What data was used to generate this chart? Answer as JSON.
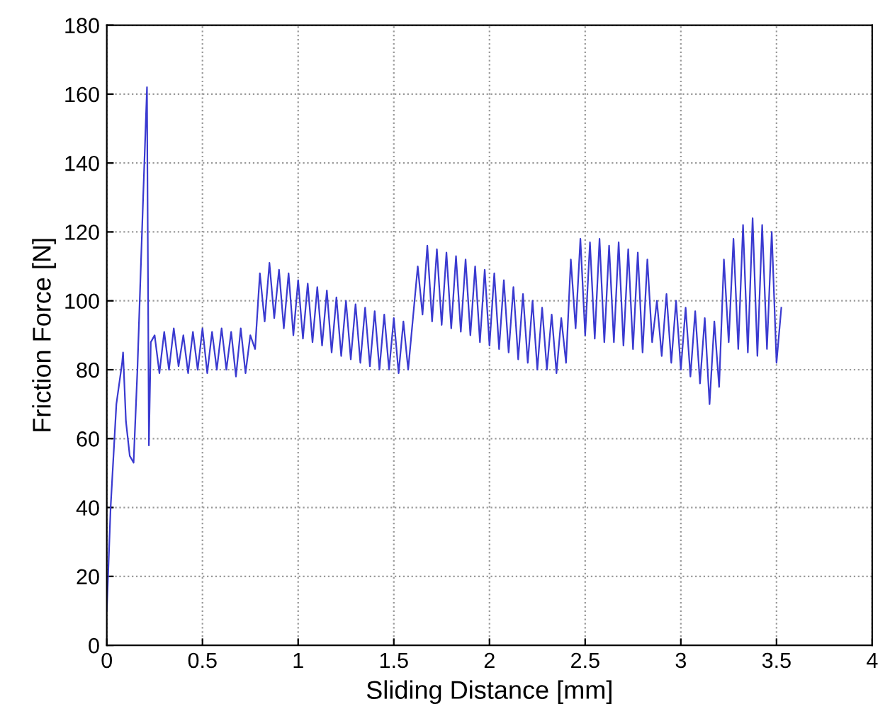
{
  "chart_data": {
    "type": "line",
    "xlabel": "Sliding Distance [mm]",
    "ylabel": "Friction Force [N]",
    "xlim": [
      0,
      4
    ],
    "xticks": [
      0,
      0.5,
      1,
      1.5,
      2,
      2.5,
      3,
      3.5,
      4
    ],
    "ylim": [
      0,
      180
    ],
    "yticks": [
      0,
      20,
      40,
      60,
      80,
      100,
      120,
      140,
      160,
      180
    ],
    "grid": true,
    "series": [
      {
        "color": "#3a3ad0",
        "x": [
          0,
          0.02,
          0.05,
          0.08,
          0.085,
          0.1,
          0.12,
          0.14,
          0.16,
          0.19,
          0.21,
          0.22,
          0.23,
          0.25,
          0.275,
          0.3,
          0.325,
          0.35,
          0.375,
          0.4,
          0.425,
          0.45,
          0.475,
          0.5,
          0.525,
          0.55,
          0.575,
          0.6,
          0.625,
          0.65,
          0.675,
          0.7,
          0.725,
          0.75,
          0.775,
          0.8,
          0.825,
          0.85,
          0.875,
          0.9,
          0.925,
          0.95,
          0.975,
          1,
          1.025,
          1.05,
          1.075,
          1.1,
          1.125,
          1.15,
          1.175,
          1.2,
          1.225,
          1.25,
          1.275,
          1.3,
          1.325,
          1.35,
          1.375,
          1.4,
          1.425,
          1.45,
          1.475,
          1.5,
          1.525,
          1.55,
          1.575,
          1.6,
          1.625,
          1.65,
          1.675,
          1.7,
          1.725,
          1.75,
          1.775,
          1.8,
          1.825,
          1.85,
          1.875,
          1.9,
          1.925,
          1.95,
          1.975,
          2,
          2.025,
          2.05,
          2.075,
          2.1,
          2.125,
          2.15,
          2.175,
          2.2,
          2.225,
          2.25,
          2.275,
          2.3,
          2.325,
          2.35,
          2.375,
          2.4,
          2.425,
          2.45,
          2.475,
          2.5,
          2.525,
          2.55,
          2.575,
          2.6,
          2.625,
          2.65,
          2.675,
          2.7,
          2.725,
          2.75,
          2.775,
          2.8,
          2.825,
          2.85,
          2.875,
          2.9,
          2.925,
          2.95,
          2.975,
          3,
          3.025,
          3.05,
          3.075,
          3.1,
          3.125,
          3.15,
          3.175,
          3.2,
          3.225,
          3.25,
          3.275,
          3.3,
          3.325,
          3.35,
          3.375,
          3.4,
          3.425,
          3.45,
          3.475,
          3.5,
          3.525
        ],
        "values": [
          10,
          40,
          70,
          82,
          85,
          65,
          55,
          53,
          80,
          130,
          162,
          58,
          88,
          90,
          79,
          91,
          80,
          92,
          81,
          90,
          79,
          91,
          80,
          92,
          79,
          91,
          80,
          92,
          80,
          91,
          78,
          92,
          79,
          90,
          86,
          108,
          94,
          111,
          95,
          109,
          92,
          108,
          90,
          106,
          89,
          105,
          88,
          104,
          87,
          103,
          85,
          101,
          84,
          100,
          83,
          99,
          82,
          98,
          81,
          97,
          80,
          96,
          80,
          95,
          79,
          94,
          80,
          95,
          110,
          96,
          116,
          94,
          115,
          93,
          114,
          92,
          113,
          91,
          112,
          90,
          110,
          88,
          109,
          87,
          108,
          86,
          106,
          85,
          104,
          83,
          102,
          82,
          100,
          80,
          98,
          80,
          96,
          79,
          95,
          82,
          112,
          92,
          118,
          90,
          117,
          89,
          118,
          88,
          116,
          88,
          117,
          87,
          115,
          86,
          114,
          85,
          112,
          88,
          100,
          84,
          102,
          82,
          100,
          80,
          98,
          78,
          97,
          76,
          95,
          70,
          94,
          75,
          112,
          88,
          118,
          86,
          122,
          85,
          124,
          84,
          122,
          86,
          120,
          82,
          98
        ]
      }
    ]
  }
}
